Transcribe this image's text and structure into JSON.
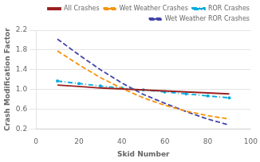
{
  "chart_data": {
    "type": "line",
    "xlabel": "Skid Number",
    "ylabel": "Crash Modification Factor",
    "x": [
      10,
      20,
      30,
      40,
      50,
      60,
      70,
      80,
      90
    ],
    "series": [
      {
        "name": "All Crashes",
        "color": "#9B2020",
        "line_style": "solid",
        "values": [
          1.09,
          1.06,
          1.03,
          1.01,
          0.99,
          0.97,
          0.95,
          0.93,
          0.91
        ]
      },
      {
        "name": "Wet Weather Crashes",
        "color": "#F5930A",
        "line_style": "dashed",
        "values": [
          1.78,
          1.5,
          1.24,
          1.02,
          0.83,
          0.68,
          0.56,
          0.47,
          0.4
        ]
      },
      {
        "name": "ROR Crashes",
        "color": "#00AADD",
        "line_style": "dashdot",
        "marker": "circle",
        "values": [
          1.17,
          1.12,
          1.07,
          1.03,
          0.99,
          0.95,
          0.91,
          0.87,
          0.83
        ]
      },
      {
        "name": "Wet Weather ROR Crashes",
        "color": "#4444AA",
        "line_style": "dashed",
        "values": [
          2.02,
          1.7,
          1.4,
          1.13,
          0.9,
          0.72,
          0.55,
          0.4,
          0.28
        ]
      }
    ],
    "xlim": [
      0,
      100
    ],
    "xticks": [
      0,
      20,
      40,
      60,
      80,
      100
    ],
    "ylim": [
      0.2,
      2.2
    ],
    "yticks": [
      0.2,
      0.6,
      {
        "value": 1.0,
        "label": "1.0"
      },
      1.4,
      1.8,
      2.2
    ],
    "grid": "y",
    "legend": "upper right"
  }
}
